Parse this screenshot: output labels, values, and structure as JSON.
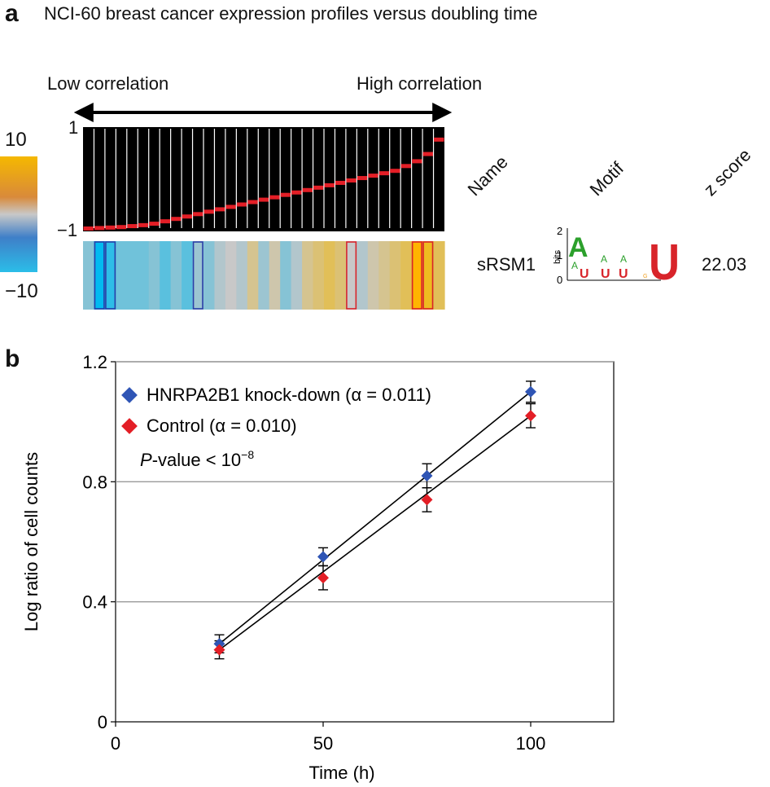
{
  "panel_a": {
    "letter": "a",
    "title": "NCI-60 breast cancer expression profiles versus doubling time",
    "low_label": "Low correlation",
    "high_label": "High correlation",
    "scale": {
      "top": "10",
      "bottom": "−10"
    },
    "bar_axis": {
      "top": "1",
      "bottom": "−1"
    },
    "columns": {
      "name": "Name",
      "motif": "Motif",
      "zscore": "z score"
    },
    "row": {
      "name": "sRSM1",
      "zscore": "22.03"
    },
    "logo": {
      "axis_label": "bits",
      "ticks": [
        "2",
        "1",
        "0"
      ]
    },
    "correlation_levels": [
      -1.0,
      -0.99,
      -0.98,
      -0.97,
      -0.95,
      -0.93,
      -0.9,
      -0.85,
      -0.8,
      -0.75,
      -0.7,
      -0.65,
      -0.6,
      -0.55,
      -0.5,
      -0.45,
      -0.4,
      -0.35,
      -0.3,
      -0.25,
      -0.2,
      -0.15,
      -0.1,
      -0.05,
      0.0,
      0.05,
      0.1,
      0.15,
      0.2,
      0.3,
      0.4,
      0.55,
      0.85
    ],
    "heat_values": [
      -3,
      -9,
      -7,
      -4,
      -4,
      -4,
      -3,
      -5,
      -3,
      -5,
      -2,
      -3,
      -1,
      0,
      -1,
      2,
      -2,
      1,
      -3,
      -1,
      2,
      3,
      4,
      3,
      0,
      -1,
      1,
      2,
      3,
      4,
      9,
      6,
      4
    ],
    "highlight_boxes": [
      {
        "index": 1,
        "color": "#2a3fa8"
      },
      {
        "index": 2,
        "color": "#2a3fa8"
      },
      {
        "index": 10,
        "color": "#2a3fa8"
      },
      {
        "index": 24,
        "color": "#d8242a"
      },
      {
        "index": 30,
        "color": "#d8242a"
      },
      {
        "index": 31,
        "color": "#d8242a"
      }
    ],
    "colors": {
      "positive": "#f5b800",
      "negative": "#2bbde8",
      "marker": "#e31e26"
    }
  },
  "panel_b": {
    "letter": "b",
    "legend": {
      "series1": "HNRPA2B1 knock-down (α = 0.011)",
      "series2": "Control (α = 0.010)",
      "pvalue_prefix": "P",
      "pvalue_text": "-value < 10",
      "pvalue_exp": "−8"
    }
  },
  "chart_data": {
    "type": "scatter",
    "xlabel": "Time (h)",
    "ylabel": "Log ratio of cell counts",
    "xlim": [
      0,
      120
    ],
    "ylim": [
      0,
      1.2
    ],
    "xticks": [
      0,
      50,
      100
    ],
    "yticks": [
      0,
      0.4,
      0.8,
      1.2
    ],
    "ytick_labels": [
      "0",
      "0.4",
      "0.8",
      "1.2"
    ],
    "grid_y": [
      0.4,
      0.8,
      1.2
    ],
    "series": [
      {
        "name": "HNRPA2B1 knock-down (α = 0.011)",
        "color": "#2f55b5",
        "x": [
          25,
          50,
          75,
          100
        ],
        "y": [
          0.26,
          0.55,
          0.82,
          1.1
        ],
        "err": [
          0.03,
          0.03,
          0.04,
          0.035
        ],
        "fit": [
          [
            25,
            0.26
          ],
          [
            100,
            1.1
          ]
        ]
      },
      {
        "name": "Control (α = 0.010)",
        "color": "#e31e26",
        "x": [
          25,
          50,
          75,
          100
        ],
        "y": [
          0.24,
          0.48,
          0.74,
          1.02
        ],
        "err": [
          0.03,
          0.04,
          0.04,
          0.04
        ],
        "fit": [
          [
            25,
            0.24
          ],
          [
            100,
            1.02
          ]
        ]
      }
    ]
  }
}
